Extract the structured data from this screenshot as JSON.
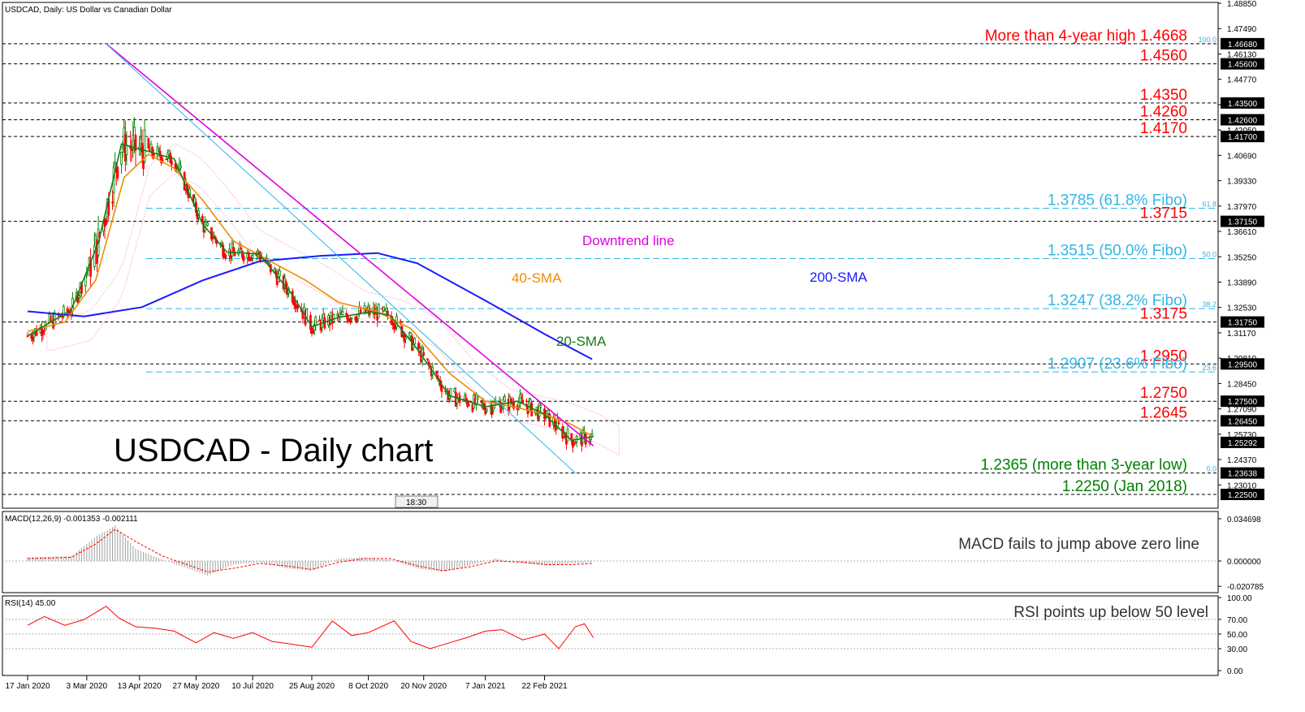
{
  "main_title": "USDCAD, Daily:  US Dollar vs Canadian Dollar",
  "big_title": "USDCAD - Daily chart",
  "time_badge": "18:30",
  "chart_data": [
    {
      "type": "line",
      "panel": "price",
      "title": "USDCAD, Daily:  US Dollar vs Canadian Dollar",
      "ylim": [
        1.225,
        1.4885
      ],
      "y_ticks": [
        "1.48850",
        "1.47490",
        "1.46130",
        "1.44770",
        "1.43410",
        "1.42050",
        "1.40690",
        "1.39330",
        "1.37970",
        "1.36610",
        "1.35250",
        "1.33890",
        "1.32530",
        "1.31170",
        "1.29810",
        "1.28450",
        "1.27090",
        "1.25730",
        "1.24370",
        "1.23010"
      ],
      "x_ticks": [
        "17 Jan 2020",
        "3 Mar 2020",
        "13 Apr 2020",
        "27 May 2020",
        "10 Jul 2020",
        "25 Aug 2020",
        "8 Oct 2020",
        "20 Nov 2020",
        "7 Jan 2021",
        "22 Feb 2021"
      ],
      "levels": [
        {
          "value": 1.4668,
          "label": "More than 4-year high 1.4668",
          "tag": "1.46680",
          "style": "black-dash",
          "color": "#ff0000",
          "fibo": "100.0"
        },
        {
          "value": 1.456,
          "label": "1.4560",
          "tag": "1.45600",
          "style": "black-dash",
          "color": "#ff0000"
        },
        {
          "value": 1.435,
          "label": "1.4350",
          "tag": "1.43500",
          "style": "black-dash",
          "color": "#ff0000"
        },
        {
          "value": 1.426,
          "label": "1.4260",
          "tag": "1.42600",
          "style": "black-dash",
          "color": "#ff0000"
        },
        {
          "value": 1.417,
          "label": "1.4170",
          "tag": "1.41700",
          "style": "black-dash",
          "color": "#ff0000"
        },
        {
          "value": 1.3785,
          "label": "1.3785 (61.8% Fibo)",
          "style": "fibo",
          "color": "#33b5e5",
          "fibo": "61.8"
        },
        {
          "value": 1.3715,
          "label": "1.3715",
          "tag": "1.37150",
          "style": "black-dash",
          "color": "#ff0000"
        },
        {
          "value": 1.3515,
          "label": "1.3515 (50.0% Fibo)",
          "style": "fibo",
          "color": "#33b5e5",
          "fibo": "50.0"
        },
        {
          "value": 1.3247,
          "label": "1.3247 (38.2% Fibo)",
          "style": "fibo",
          "color": "#33b5e5",
          "fibo": "38.2"
        },
        {
          "value": 1.3175,
          "label": "1.3175",
          "tag": "1.31750",
          "style": "black-dash",
          "color": "#ff0000"
        },
        {
          "value": 1.295,
          "label": "1.2950",
          "tag": "1.29500",
          "style": "black-dash",
          "color": "#ff0000"
        },
        {
          "value": 1.2907,
          "label": "1.2907 (23.6% Fibo)",
          "style": "fibo",
          "color": "#33b5e5",
          "fibo": "23.6"
        },
        {
          "value": 1.275,
          "label": "1.2750",
          "tag": "1.27500",
          "style": "black-dash",
          "color": "#ff0000"
        },
        {
          "value": 1.2645,
          "label": "1.2645",
          "tag": "1.26450",
          "style": "black-dash",
          "color": "#ff0000"
        },
        {
          "value": 1.2365,
          "label": "1.2365 (more than 3-year low)",
          "tag": "1.23638",
          "style": "black-dash",
          "color": "#008000",
          "fibo": "0.0"
        },
        {
          "value": 1.225,
          "label": "1.2250 (Jan 2018)",
          "tag": "1.22500",
          "style": "black-dash",
          "color": "#008000"
        }
      ],
      "current_price": {
        "value": 1.25292,
        "tag": "1.25292"
      },
      "annotations": [
        {
          "text": "Downtrend line",
          "color": "#e000e0"
        },
        {
          "text": "200-SMA",
          "color": "#1a1aff"
        },
        {
          "text": "40-SMA",
          "color": "#f08c00"
        },
        {
          "text": "20-SMA",
          "color": "#1a7a1a"
        }
      ],
      "series": [
        {
          "name": "200-SMA",
          "color": "#1a1aff",
          "x": [
            "2020-01-17",
            "2020-03-01",
            "2020-04-15",
            "2020-06-01",
            "2020-07-15",
            "2020-09-01",
            "2020-10-15",
            "2020-11-15",
            "2021-01-07",
            "2021-02-22",
            "2021-03-31"
          ],
          "values": [
            1.3232,
            1.3205,
            1.3255,
            1.3398,
            1.35,
            1.353,
            1.3545,
            1.349,
            1.329,
            1.311,
            1.2975
          ]
        },
        {
          "name": "40-SMA",
          "color": "#f08c00",
          "x": [
            "2020-01-17",
            "2020-02-15",
            "2020-03-10",
            "2020-04-01",
            "2020-04-20",
            "2020-05-10",
            "2020-06-01",
            "2020-06-25",
            "2020-07-20",
            "2020-08-20",
            "2020-09-15",
            "2020-10-15",
            "2020-11-10",
            "2020-12-10",
            "2021-01-07",
            "2021-02-01",
            "2021-02-22",
            "2021-03-15",
            "2021-04-01"
          ],
          "values": [
            1.3125,
            1.3175,
            1.34,
            1.395,
            1.4075,
            1.4,
            1.383,
            1.361,
            1.3515,
            1.34,
            1.328,
            1.323,
            1.314,
            1.29,
            1.275,
            1.2715,
            1.268,
            1.2625,
            1.256
          ]
        },
        {
          "name": "20-SMA",
          "color": "#1a7a1a",
          "x": [
            "2020-01-17",
            "2020-02-20",
            "2020-03-12",
            "2020-03-30",
            "2020-04-20",
            "2020-05-10",
            "2020-06-01",
            "2020-06-20",
            "2020-07-15",
            "2020-08-10",
            "2020-08-25",
            "2020-09-15",
            "2020-10-10",
            "2020-10-25",
            "2020-11-15",
            "2020-12-10",
            "2021-01-07",
            "2021-02-01",
            "2021-02-22",
            "2021-03-15",
            "2021-04-01"
          ],
          "values": [
            1.31,
            1.324,
            1.36,
            1.413,
            1.409,
            1.405,
            1.37,
            1.355,
            1.354,
            1.332,
            1.315,
            1.32,
            1.323,
            1.321,
            1.303,
            1.278,
            1.272,
            1.275,
            1.268,
            1.254,
            1.256
          ]
        },
        {
          "name": "Downtrend line",
          "color": "#e000e0",
          "x": [
            "2020-03-18",
            "2021-04-01"
          ],
          "values": [
            1.4668,
            1.251
          ]
        }
      ]
    },
    {
      "type": "bar",
      "panel": "macd",
      "title": "MACD(12,26,9) -0.001353 -0.002111",
      "annotation": "MACD fails to jump above zero line",
      "y_ticks": [
        "0.034698",
        "0.000000",
        "-0.020785"
      ],
      "ylim": [
        -0.0245,
        0.0392
      ],
      "x": [
        "2020-01-17",
        "2020-02-20",
        "2020-03-10",
        "2020-03-25",
        "2020-04-10",
        "2020-05-01",
        "2020-05-20",
        "2020-06-05",
        "2020-06-25",
        "2020-07-15",
        "2020-08-05",
        "2020-08-25",
        "2020-09-15",
        "2020-10-05",
        "2020-10-25",
        "2020-11-15",
        "2020-12-05",
        "2020-12-25",
        "2021-01-15",
        "2021-02-05",
        "2021-02-25",
        "2021-03-15",
        "2021-04-01"
      ],
      "values": [
        0.003,
        0.004,
        0.02,
        0.029,
        0.01,
        0.001,
        -0.006,
        -0.012,
        -0.003,
        -0.001,
        -0.006,
        -0.008,
        0.002,
        0.003,
        0.001,
        -0.006,
        -0.009,
        -0.004,
        0.002,
        -0.002,
        -0.004,
        -0.002,
        -0.001
      ],
      "signal": [
        0.002,
        0.003,
        0.014,
        0.026,
        0.016,
        0.004,
        -0.003,
        -0.009,
        -0.006,
        -0.002,
        -0.004,
        -0.007,
        -0.001,
        0.002,
        0.002,
        -0.004,
        -0.008,
        -0.005,
        0.0,
        -0.001,
        -0.003,
        -0.003,
        -0.002
      ]
    },
    {
      "type": "line",
      "panel": "rsi",
      "title": "RSI(14) 45.00",
      "annotation": "RSI points up below 50 level",
      "y_ticks": [
        "100.00",
        "70.00",
        "50.00",
        "30.00",
        "0.00"
      ],
      "ylim": [
        0,
        100
      ],
      "x": [
        "2020-01-17",
        "2020-01-30",
        "2020-02-15",
        "2020-03-01",
        "2020-03-18",
        "2020-03-28",
        "2020-04-10",
        "2020-04-25",
        "2020-05-10",
        "2020-05-27",
        "2020-06-10",
        "2020-06-25",
        "2020-07-10",
        "2020-07-25",
        "2020-08-10",
        "2020-08-25",
        "2020-09-10",
        "2020-09-25",
        "2020-10-08",
        "2020-10-28",
        "2020-11-10",
        "2020-11-25",
        "2020-12-10",
        "2020-12-25",
        "2021-01-07",
        "2021-01-20",
        "2021-02-05",
        "2021-02-22",
        "2021-03-05",
        "2021-03-18",
        "2021-03-25",
        "2021-04-01"
      ],
      "values": [
        62,
        74,
        62,
        70,
        88,
        72,
        60,
        58,
        54,
        38,
        52,
        44,
        52,
        40,
        36,
        32,
        68,
        48,
        52,
        68,
        40,
        30,
        38,
        46,
        54,
        56,
        42,
        50,
        30,
        60,
        64,
        45
      ]
    }
  ]
}
